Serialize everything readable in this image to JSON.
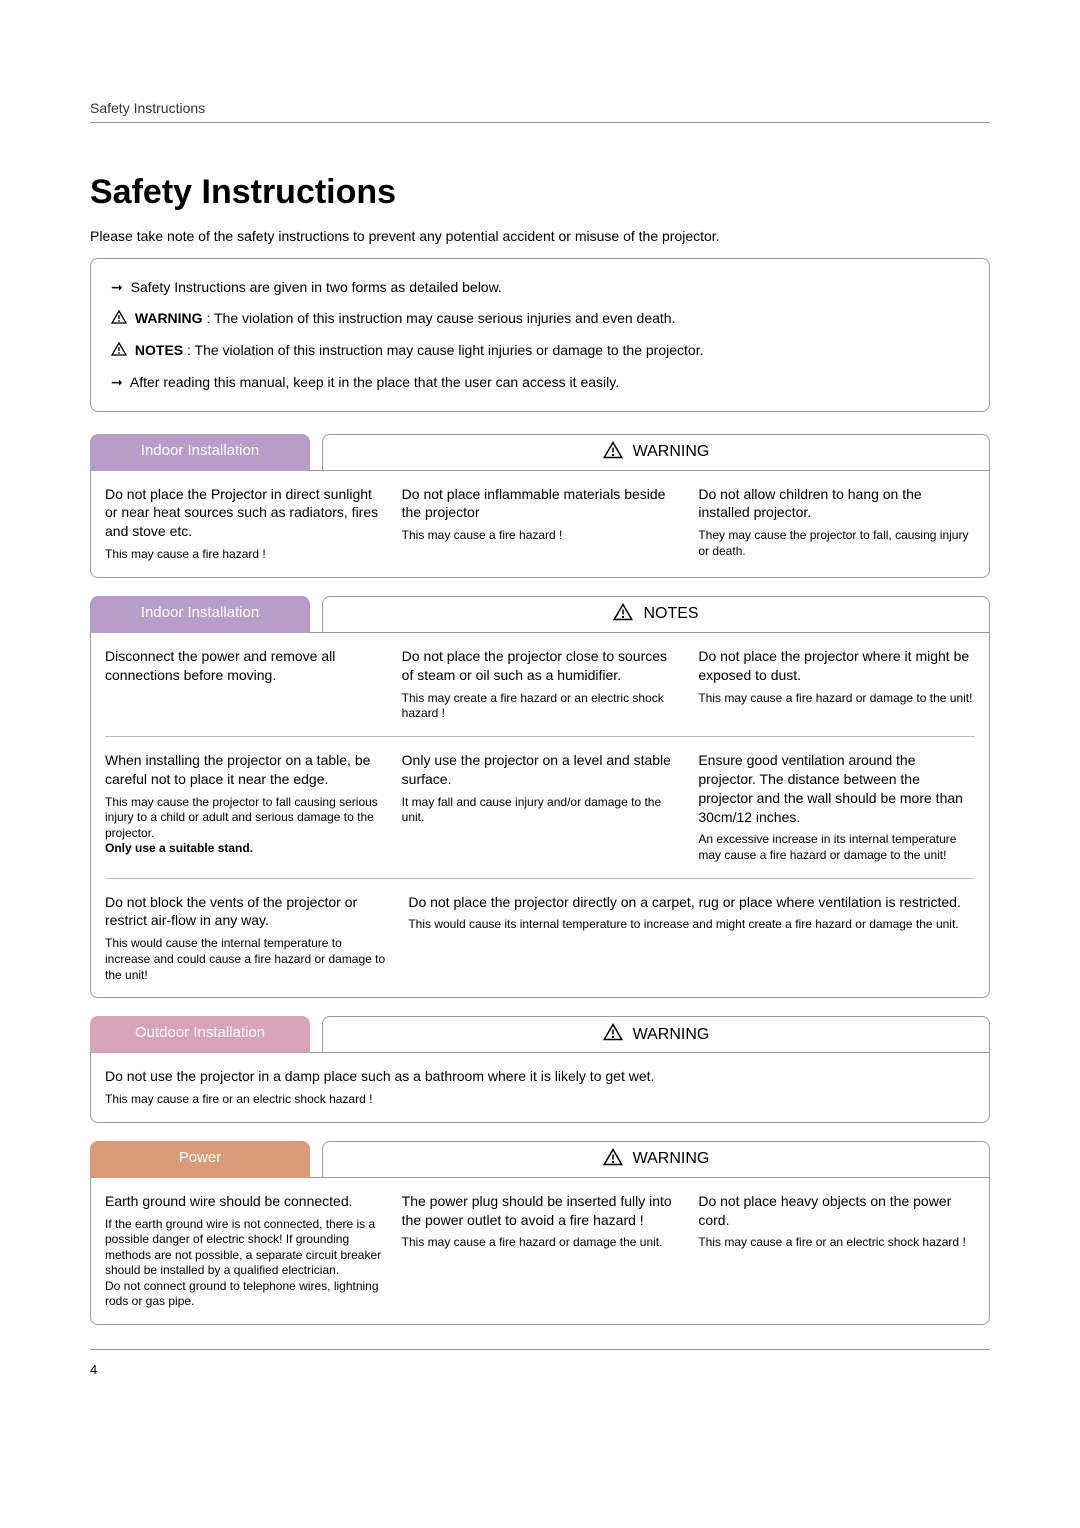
{
  "colors": {
    "indoor_tab": "#b79dc9",
    "outdoor_tab": "#d8a3b8",
    "power_tab": "#d99a7a",
    "text": "#000000",
    "border": "#999999",
    "tab_text": "#ffffff"
  },
  "header": {
    "label": "Safety Instructions"
  },
  "title": "Safety Instructions",
  "intro": "Please take note of the safety instructions to prevent any potential accident or misuse of the projector.",
  "intro_box": {
    "line1": "Safety Instructions are given in two forms as detailed below.",
    "warning_label": "WARNING",
    "warning_text": ": The violation of this instruction may cause serious injuries and even death.",
    "notes_label": "NOTES",
    "notes_text": ": The violation of this instruction may cause light injuries or damage to the projector.",
    "line4": "After reading this manual,  keep it in the place that the user can access it easily."
  },
  "labels": {
    "warning": "WARNING",
    "notes": "NOTES"
  },
  "sections": [
    {
      "tab": "Indoor Installation",
      "label": "WARNING",
      "rows": [
        {
          "cols": 3,
          "cells": [
            {
              "main": "Do not place the Projector in direct sunlight or near heat sources such as radiators, fires and stove etc.",
              "sub": "This may cause a fire hazard !"
            },
            {
              "main": "Do not place inflammable materials beside the projector",
              "sub": "This may cause a fire hazard !"
            },
            {
              "main": "Do not allow children to hang on the installed projector.",
              "sub": "They may cause the projector to fall, causing injury or death."
            }
          ]
        }
      ]
    },
    {
      "tab": "Indoor Installation",
      "label": "NOTES",
      "rows": [
        {
          "cols": 3,
          "cells": [
            {
              "main": "Disconnect the power and remove all connections before moving.",
              "sub": ""
            },
            {
              "main": "Do not place the projector close to sources of steam or oil such as a humidifier.",
              "sub": "This may create a fire hazard or an electric shock hazard !"
            },
            {
              "main": "Do not place the projector where it might be exposed to dust.",
              "sub": "This may cause a fire hazard or damage to the unit!"
            }
          ]
        },
        {
          "cols": 3,
          "cells": [
            {
              "main": "When installing the projector on a table, be careful not to place it near the edge.",
              "sub": "This may cause the projector to fall causing serious injury to a child or adult and serious damage to the projector.\nOnly use a suitable stand."
            },
            {
              "main": "Only use the projector on a level and stable surface.",
              "sub": "It may fall and cause injury and/or damage to the unit."
            },
            {
              "main": "Ensure good ventilation around the projector. The distance between the projector and the wall should be more than 30cm/12 inches.",
              "sub": "An excessive increase in its internal temperature may cause a fire hazard or damage to the unit!"
            }
          ]
        },
        {
          "cols": 2,
          "cells": [
            {
              "main": "Do not block the vents of the projector or restrict air-flow in any way.",
              "sub": "This would cause the internal temperature to increase and could cause a fire hazard or damage to the unit!"
            },
            {
              "main": "Do not place the projector directly on a carpet, rug or place where ventilation is restricted.",
              "sub": "This would cause its internal temperature to increase and might create a fire hazard or damage the unit."
            }
          ]
        }
      ]
    },
    {
      "tab": "Outdoor Installation",
      "label": "WARNING",
      "rows": [
        {
          "cols": 1,
          "cells": [
            {
              "main": "Do not use the projector in a damp place such as a bathroom where it is likely to get wet.",
              "sub": "This may cause a fire or an electric shock hazard !"
            }
          ]
        }
      ]
    },
    {
      "tab": "Power",
      "label": "WARNING",
      "rows": [
        {
          "cols": 3,
          "cells": [
            {
              "main": "Earth ground wire should be connected.",
              "sub": "If the earth ground wire is not connected, there is a possible danger of electric shock! If grounding methods are not  possible, a separate circuit breaker should be installed by a qualified electrician.\nDo not connect ground to telephone wires, lightning rods or gas pipe."
            },
            {
              "main": "The power plug should be inserted fully into the power outlet to avoid a fire hazard !",
              "sub": "This may cause a fire hazard or damage the unit."
            },
            {
              "main": "Do not place heavy objects on the power cord.",
              "sub": "This may cause a fire or an electric shock hazard !"
            }
          ]
        }
      ]
    }
  ],
  "page_number": "4"
}
